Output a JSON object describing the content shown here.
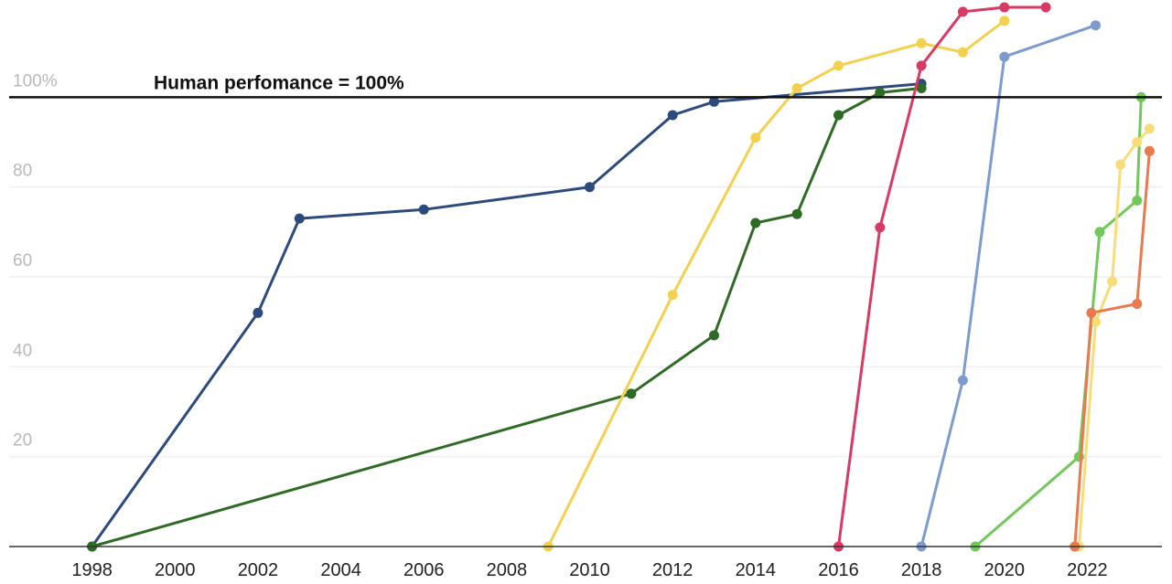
{
  "chart_data": {
    "type": "line",
    "title": "",
    "xlabel": "",
    "ylabel": "",
    "xlim": [
      1996,
      2023.8
    ],
    "ylim": [
      0,
      120
    ],
    "x_ticks": [
      "1998",
      "2000",
      "2002",
      "2004",
      "2006",
      "2008",
      "2010",
      "2012",
      "2014",
      "2016",
      "2018",
      "2020",
      "2022"
    ],
    "y_ticks": [
      {
        "value": 20,
        "label": "20"
      },
      {
        "value": 40,
        "label": "40"
      },
      {
        "value": 60,
        "label": "60"
      },
      {
        "value": 80,
        "label": "80"
      },
      {
        "value": 100,
        "label": "100%"
      }
    ],
    "grid": "horizontal",
    "reference_line": {
      "value": 100,
      "label": "Human perfomance = 100%"
    },
    "series": [
      {
        "color": "#2d4a7c",
        "points": [
          [
            1998,
            0
          ],
          [
            2002,
            52
          ],
          [
            2003,
            73
          ],
          [
            2006,
            75
          ],
          [
            2010,
            80
          ],
          [
            2012,
            96
          ],
          [
            2013,
            99
          ],
          [
            2018,
            103
          ]
        ]
      },
      {
        "color": "#2f6b25",
        "points": [
          [
            1998,
            0
          ],
          [
            2011,
            34
          ],
          [
            2013,
            47
          ],
          [
            2014,
            72
          ],
          [
            2015,
            74
          ],
          [
            2016,
            96
          ],
          [
            2017,
            101
          ],
          [
            2018,
            102
          ]
        ]
      },
      {
        "color": "#f3d14e",
        "points": [
          [
            2009,
            0
          ],
          [
            2012,
            56
          ],
          [
            2014,
            91
          ],
          [
            2015,
            102
          ],
          [
            2016,
            107
          ],
          [
            2018,
            112
          ],
          [
            2019,
            110
          ],
          [
            2020,
            117
          ]
        ]
      },
      {
        "color": "#d93a63",
        "points": [
          [
            2016,
            0
          ],
          [
            2017,
            71
          ],
          [
            2018,
            107
          ],
          [
            2019,
            119
          ],
          [
            2020,
            120
          ],
          [
            2021,
            120
          ]
        ]
      },
      {
        "color": "#7d9bcf",
        "points": [
          [
            2018,
            0
          ],
          [
            2019,
            37
          ],
          [
            2020,
            109
          ],
          [
            2022.2,
            116
          ]
        ]
      },
      {
        "color": "#72c85b",
        "points": [
          [
            2019.3,
            0
          ],
          [
            2021.8,
            20
          ],
          [
            2022.3,
            70
          ],
          [
            2023.2,
            77
          ],
          [
            2023.3,
            100
          ]
        ]
      },
      {
        "color": "#f7dd7a",
        "points": [
          [
            2021.8,
            0
          ],
          [
            2022.2,
            50
          ],
          [
            2022.6,
            59
          ],
          [
            2022.8,
            85
          ],
          [
            2023.2,
            90
          ],
          [
            2023.5,
            93
          ]
        ]
      },
      {
        "color": "#e87a4f",
        "points": [
          [
            2021.7,
            0
          ],
          [
            2022.1,
            52
          ],
          [
            2023.2,
            54
          ],
          [
            2023.5,
            88
          ]
        ]
      }
    ]
  }
}
